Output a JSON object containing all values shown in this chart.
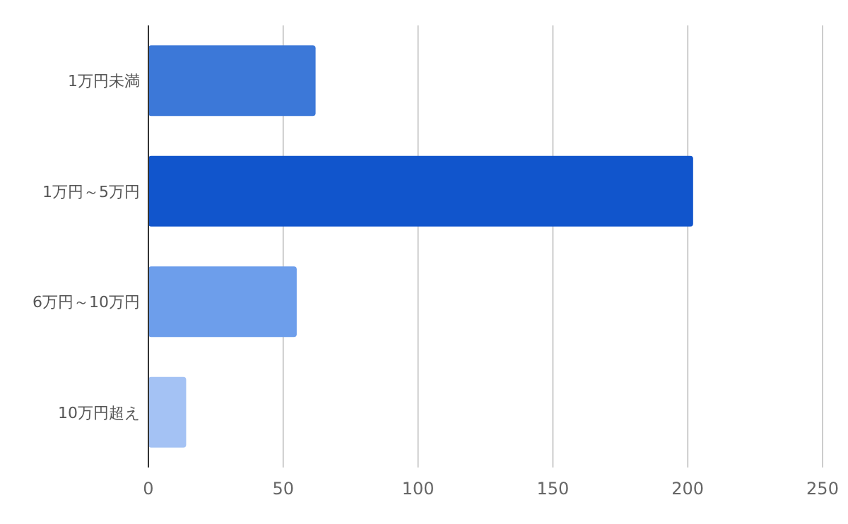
{
  "chart_data": {
    "type": "bar",
    "orientation": "horizontal",
    "categories": [
      "1万円未満",
      "1万円～5万円",
      "6万円～10万円",
      "10万円超え"
    ],
    "values": [
      62,
      202,
      55,
      14
    ],
    "colors": [
      "#3c78d8",
      "#1155cc",
      "#6d9eeb",
      "#a4c2f4"
    ],
    "xlim": [
      0,
      250
    ],
    "xticks": [
      0,
      50,
      100,
      150,
      200,
      250
    ],
    "grid": "x"
  }
}
